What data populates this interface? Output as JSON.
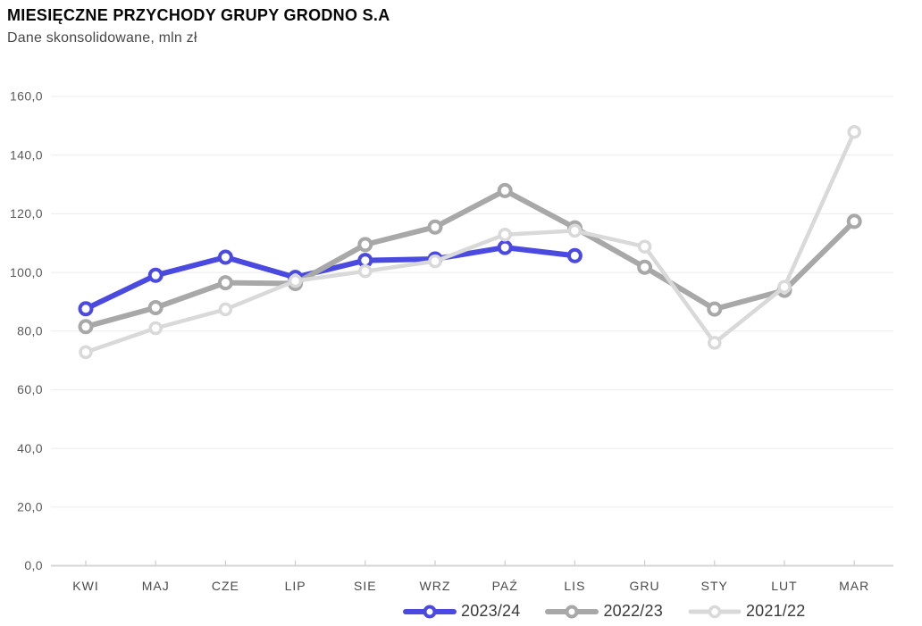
{
  "header": {
    "title": "MIESIĘCZNE PRZYCHODY GRUPY GRODNO S.A",
    "subtitle": "Dane skonsolidowane, mln zł"
  },
  "chart_data": {
    "type": "line",
    "title": "MIESIĘCZNE PRZYCHODY GRUPY GRODNO S.A",
    "subtitle": "Dane skonsolidowane, mln zł",
    "unit": "mln zł",
    "categories": [
      "KWI",
      "MAJ",
      "CZE",
      "LIP",
      "SIE",
      "WRZ",
      "PAŹ",
      "LIS",
      "GRU",
      "STY",
      "LUT",
      "MAR"
    ],
    "series": [
      {
        "name": "2023/24",
        "color": "#4a49e0",
        "values": [
          87.6,
          99.0,
          105.2,
          98.3,
          104.1,
          104.6,
          108.5,
          105.7,
          null,
          null,
          null,
          null
        ]
      },
      {
        "name": "2022/23",
        "color": "#a8a8a8",
        "values": [
          81.5,
          88.0,
          96.5,
          96.2,
          109.5,
          115.5,
          127.9,
          115.2,
          101.8,
          87.5,
          93.9,
          117.4
        ]
      },
      {
        "name": "2021/22",
        "color": "#d9d9d9",
        "values": [
          72.8,
          81.0,
          87.4,
          97.1,
          100.4,
          103.8,
          112.9,
          114.2,
          108.8,
          76.0,
          95.1,
          147.9
        ]
      }
    ],
    "xlabel": "",
    "ylabel": "",
    "ylim": [
      0,
      160
    ],
    "y_tick_step": 20,
    "y_tick_labels": [
      "0,0",
      "20,0",
      "40,0",
      "60,0",
      "80,0",
      "100,0",
      "120,0",
      "140,0",
      "160,0"
    ],
    "grid": "horizontal",
    "legend_position": "bottom"
  },
  "colors": {
    "accent_blue": "#4a49e0",
    "series_gray": "#a8a8a8",
    "series_light_gray": "#d9d9d9",
    "gridline": "#ececec",
    "axis_line": "#d5d5d5",
    "tick_mark": "#c2c2c2"
  }
}
